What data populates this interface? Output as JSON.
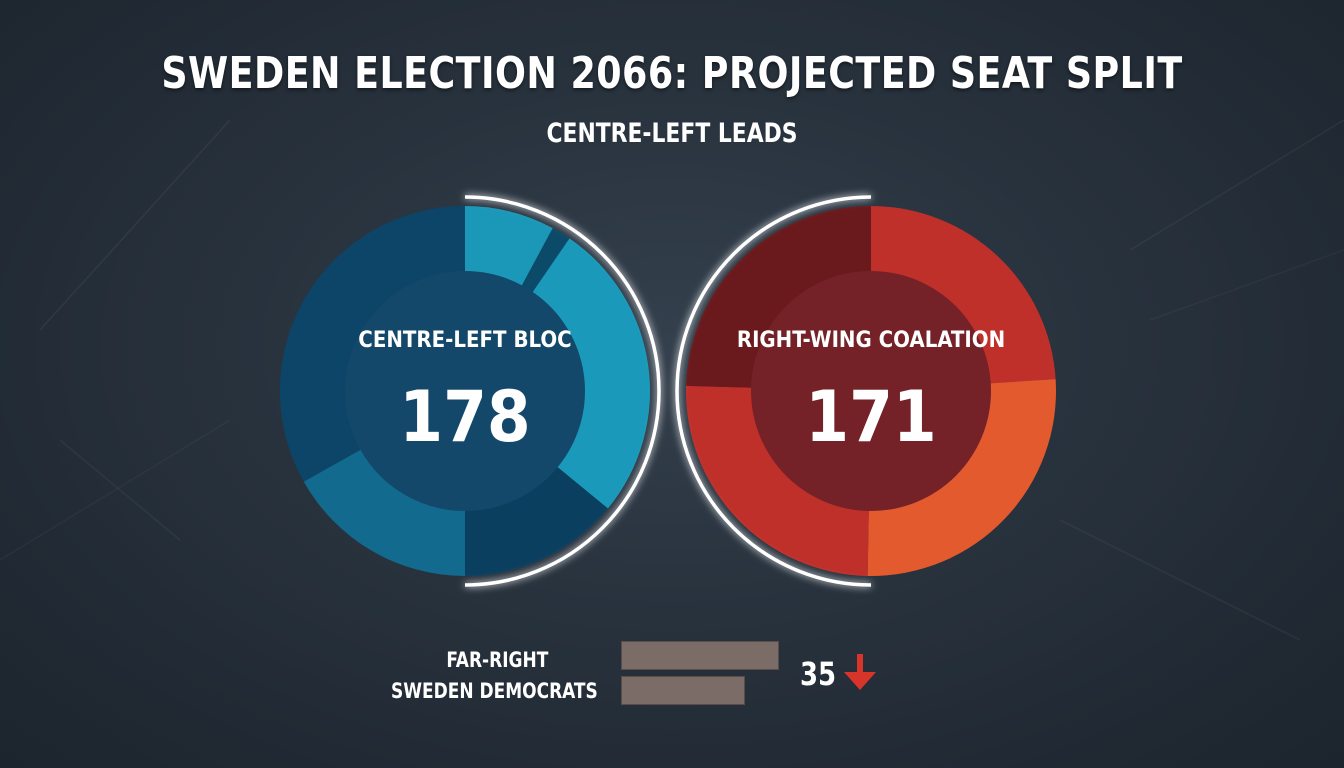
{
  "title": "SWEDEN ELECTION 2066: PROJECTED SEAT SPLIT",
  "subtitle": "CENTRE-LEFT LEADS",
  "chart_data": [
    {
      "type": "pie",
      "label": "CENTRE-LEFT BLOC",
      "total": 178,
      "segments": [
        {
          "value": 14,
          "color": "#1b98b8"
        },
        {
          "value": 3,
          "color": "#0c4a6a"
        },
        {
          "value": 47,
          "color": "#1a99ba"
        },
        {
          "value": 25,
          "color": "#0a3f60"
        },
        {
          "value": 30,
          "color": "#126a8e"
        },
        {
          "value": 59,
          "color": "#0c4568"
        }
      ]
    },
    {
      "type": "pie",
      "label": "RIGHT-WING COALATION",
      "total": 171,
      "segments": [
        {
          "value": 41,
          "color": "#c0302a"
        },
        {
          "value": 45,
          "color": "#e25a2e"
        },
        {
          "value": 43,
          "color": "#c0302a"
        },
        {
          "value": 42,
          "color": "#6a1a1c"
        }
      ]
    },
    {
      "type": "bar",
      "categories": [
        "FAR-RIGHT",
        "SWEDEN DEMOCRATS"
      ],
      "value_label": "35",
      "trend": "down",
      "bar_color": "#7c6c68",
      "arrow_color": "#d9342a"
    }
  ]
}
